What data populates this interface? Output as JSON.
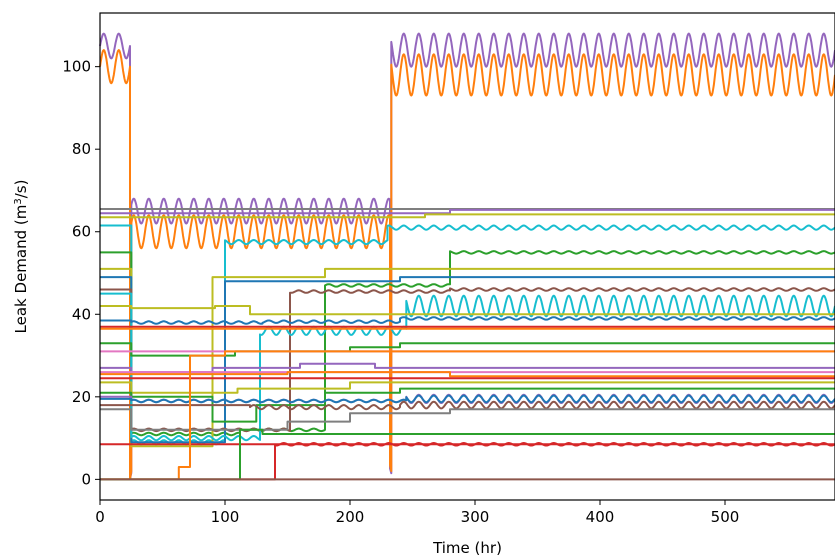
{
  "chart_data": {
    "type": "line",
    "xlabel": "Time (hr)",
    "ylabel_main": "Leak Demand (m",
    "ylabel_sup": "3",
    "ylabel_tail": "/s)",
    "xlim": [
      0,
      588
    ],
    "ylim": [
      -5,
      113
    ],
    "xticks": [
      0,
      100,
      200,
      300,
      400,
      500
    ],
    "yticks": [
      0,
      20,
      40,
      60,
      80,
      100
    ],
    "grid": false,
    "legend": "none",
    "colors": {
      "blue": "#1f77b4",
      "orange": "#ff7f0e",
      "green": "#2ca02c",
      "red": "#d62728",
      "purple": "#9467bd",
      "brown": "#8c564b",
      "pink": "#e377c2",
      "gray": "#7f7f7f",
      "olive": "#bcbd22",
      "cyan": "#17becf"
    },
    "series": [
      {
        "color": "purple",
        "steps": [
          [
            0,
            105
          ],
          [
            24,
            0
          ],
          [
            25,
            65
          ],
          [
            232,
            0
          ],
          [
            233,
            104
          ]
        ],
        "amp": [
          3,
          3,
          3,
          3,
          4
        ],
        "period": 12
      },
      {
        "color": "orange",
        "steps": [
          [
            0,
            100
          ],
          [
            24,
            0
          ],
          [
            25,
            60
          ],
          [
            232,
            0
          ],
          [
            233,
            98
          ]
        ],
        "amp": [
          4,
          4,
          4,
          4,
          5
        ],
        "period": 12
      },
      {
        "color": "gray",
        "steps": [
          [
            0,
            65.5
          ]
        ],
        "amp": [
          0
        ]
      },
      {
        "color": "purple",
        "steps": [
          [
            0,
            64.5
          ],
          [
            280,
            65.3
          ]
        ],
        "amp": [
          0
        ]
      },
      {
        "color": "olive",
        "steps": [
          [
            0,
            63.5
          ],
          [
            225,
            63.5
          ],
          [
            260,
            64.2
          ]
        ],
        "amp": [
          0
        ]
      },
      {
        "color": "cyan",
        "steps": [
          [
            0,
            61.5
          ],
          [
            25,
            9
          ],
          [
            100,
            57.5
          ],
          [
            230,
            61
          ]
        ],
        "amp": [
          0,
          0.5,
          0.5,
          0.5
        ],
        "period": 12
      },
      {
        "color": "green",
        "steps": [
          [
            0,
            55
          ],
          [
            25,
            11
          ],
          [
            112,
            12
          ],
          [
            180,
            47
          ],
          [
            280,
            55
          ]
        ],
        "amp": [
          0,
          0.3,
          0.3,
          0.3,
          0.3
        ],
        "period": 12
      },
      {
        "color": "olive",
        "steps": [
          [
            0,
            51
          ],
          [
            25,
            8
          ],
          [
            90,
            49
          ],
          [
            180,
            51
          ]
        ],
        "amp": [
          0
        ]
      },
      {
        "color": "blue",
        "steps": [
          [
            0,
            49
          ],
          [
            25,
            9
          ],
          [
            100,
            48
          ],
          [
            240,
            49
          ]
        ],
        "amp": [
          0
        ]
      },
      {
        "color": "brown",
        "steps": [
          [
            0,
            46
          ],
          [
            25,
            12
          ],
          [
            152,
            45.5
          ],
          [
            280,
            46
          ]
        ],
        "amp": [
          0,
          0.3,
          0.3,
          0.3
        ],
        "period": 12
      },
      {
        "color": "cyan",
        "steps": [
          [
            0,
            45
          ],
          [
            25,
            10
          ],
          [
            128,
            36
          ],
          [
            245,
            42
          ]
        ],
        "amp": [
          0,
          0.5,
          1,
          2.5
        ],
        "period": 12
      },
      {
        "color": "olive",
        "steps": [
          [
            0,
            42
          ],
          [
            25,
            41.5
          ],
          [
            92,
            42
          ],
          [
            120,
            40
          ]
        ],
        "amp": [
          0
        ]
      },
      {
        "color": "blue",
        "steps": [
          [
            0,
            38.5
          ],
          [
            25,
            38
          ],
          [
            130,
            38.2
          ],
          [
            240,
            39
          ]
        ],
        "amp": [
          0,
          0.3,
          0.3,
          0.3
        ],
        "period": 12
      },
      {
        "color": "red",
        "steps": [
          [
            0,
            37
          ]
        ],
        "amp": [
          0
        ]
      },
      {
        "color": "orange",
        "steps": [
          [
            0,
            36.5
          ]
        ],
        "amp": [
          0
        ]
      },
      {
        "color": "green",
        "steps": [
          [
            0,
            33
          ],
          [
            25,
            30
          ],
          [
            108,
            31
          ],
          [
            200,
            32
          ],
          [
            240,
            33
          ]
        ],
        "amp": [
          0
        ]
      },
      {
        "color": "pink",
        "steps": [
          [
            0,
            31
          ]
        ],
        "amp": [
          0
        ]
      },
      {
        "color": "purple",
        "steps": [
          [
            0,
            27
          ],
          [
            25,
            26
          ],
          [
            90,
            27
          ],
          [
            160,
            28
          ],
          [
            220,
            27
          ]
        ],
        "amp": [
          0
        ]
      },
      {
        "color": "pink",
        "steps": [
          [
            0,
            26
          ]
        ],
        "amp": [
          0
        ]
      },
      {
        "color": "orange",
        "steps": [
          [
            0,
            25.5
          ],
          [
            150,
            26
          ],
          [
            280,
            25
          ]
        ],
        "amp": [
          0
        ]
      },
      {
        "color": "red",
        "steps": [
          [
            0,
            24.5
          ]
        ],
        "amp": [
          0
        ]
      },
      {
        "color": "olive",
        "steps": [
          [
            0,
            23.5
          ],
          [
            25,
            21
          ],
          [
            110,
            22
          ],
          [
            200,
            23.5
          ]
        ],
        "amp": [
          0
        ]
      },
      {
        "color": "green",
        "steps": [
          [
            0,
            21
          ],
          [
            25,
            20
          ],
          [
            90,
            14
          ],
          [
            125,
            18
          ],
          [
            180,
            21
          ],
          [
            240,
            22
          ]
        ],
        "amp": [
          0
        ]
      },
      {
        "color": "purple",
        "steps": [
          [
            0,
            20
          ],
          [
            25,
            19
          ],
          [
            160,
            19
          ],
          [
            245,
            19.5
          ]
        ],
        "amp": [
          0,
          0.3,
          0.3,
          1
        ],
        "period": 12
      },
      {
        "color": "blue",
        "steps": [
          [
            0,
            19.5
          ],
          [
            25,
            19
          ],
          [
            150,
            19
          ],
          [
            245,
            19.5
          ]
        ],
        "amp": [
          0,
          0.3,
          0.3,
          0.8
        ],
        "period": 12
      },
      {
        "color": "brown",
        "steps": [
          [
            0,
            18
          ],
          [
            120,
            17.5
          ],
          [
            240,
            18
          ]
        ],
        "amp": [
          0,
          0.5,
          0.8
        ],
        "period": 12
      },
      {
        "color": "gray",
        "steps": [
          [
            0,
            17
          ],
          [
            25,
            12
          ],
          [
            150,
            14
          ],
          [
            200,
            16
          ],
          [
            280,
            17
          ]
        ],
        "amp": [
          0
        ]
      },
      {
        "color": "red",
        "steps": [
          [
            0,
            8.5
          ]
        ],
        "amp": [
          0,
          0.3
        ],
        "period": 12
      },
      {
        "color": "red",
        "steps": [
          [
            0,
            0
          ],
          [
            140,
            8.5
          ]
        ],
        "amp": [
          0,
          0.3
        ],
        "period": 12
      },
      {
        "color": "orange",
        "steps": [
          [
            0,
            0
          ],
          [
            63,
            3
          ],
          [
            72,
            30
          ],
          [
            100,
            31
          ]
        ],
        "amp": [
          0
        ]
      },
      {
        "color": "green",
        "steps": [
          [
            0,
            0
          ],
          [
            112,
            12
          ],
          [
            130,
            11
          ]
        ],
        "amp": [
          0
        ]
      },
      {
        "color": "brown",
        "steps": [
          [
            0,
            0
          ]
        ],
        "amp": [
          0
        ]
      }
    ]
  }
}
